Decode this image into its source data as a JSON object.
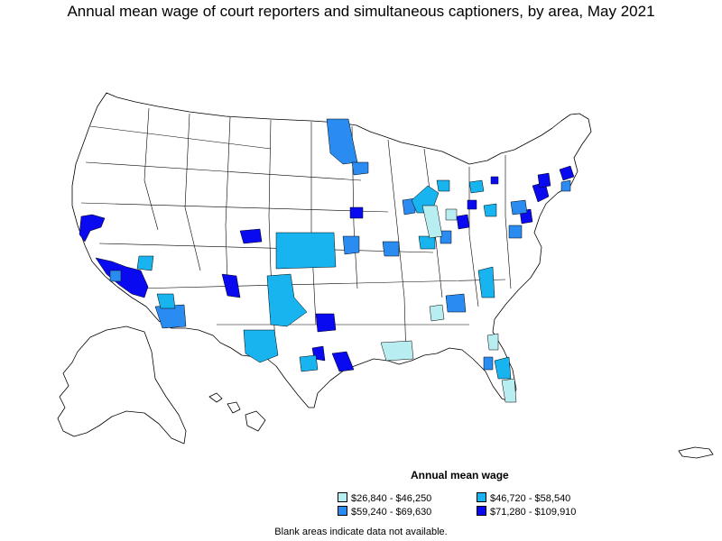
{
  "title": "Annual mean wage of court reporters and simultaneous captioners, by area, May 2021",
  "legend": {
    "title": "Annual mean wage",
    "items": [
      {
        "label": "$26,840 - $46,250",
        "color": "#b8eef2"
      },
      {
        "label": "$46,720 - $58,540",
        "color": "#18b4f0"
      },
      {
        "label": "$59,240 - $69,630",
        "color": "#2a8bf0"
      },
      {
        "label": "$71,280 - $109,910",
        "color": "#0a0af0"
      }
    ]
  },
  "note": "Blank areas indicate data not available."
}
